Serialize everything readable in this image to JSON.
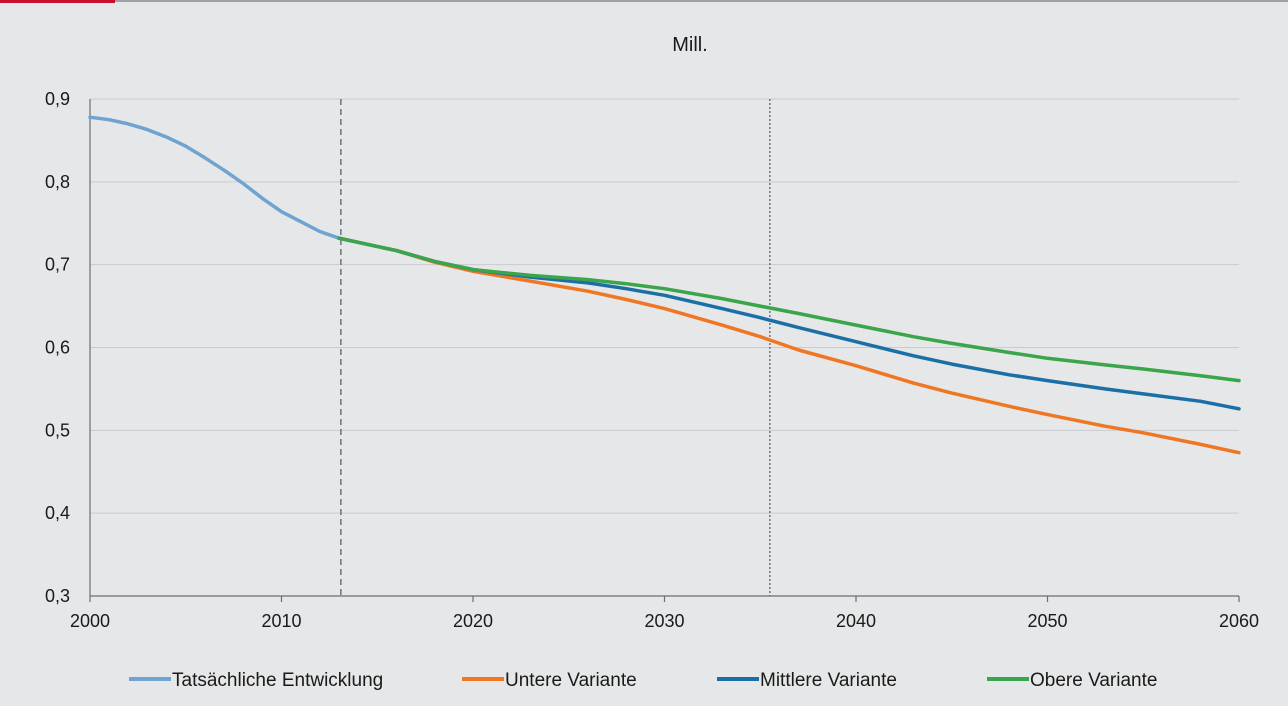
{
  "chart_data": {
    "type": "line",
    "unit_label": "Mill.",
    "xlim": [
      2000,
      2060
    ],
    "ylim": [
      0.3,
      0.9
    ],
    "x_ticks": [
      2000,
      2010,
      2020,
      2030,
      2040,
      2050,
      2060
    ],
    "y_ticks": [
      0.3,
      0.4,
      0.5,
      0.6,
      0.7,
      0.8,
      0.9
    ],
    "y_tick_labels": [
      "0,3",
      "0,4",
      "0,5",
      "0,6",
      "0,7",
      "0,8",
      "0,9"
    ],
    "grid": "horizontal",
    "legend_position": "bottom",
    "vertical_markers": [
      {
        "x": 2013.1,
        "style": "dashed"
      },
      {
        "x": 2035.5,
        "style": "dotted"
      }
    ],
    "series": [
      {
        "name": "Tatsächliche Entwicklung",
        "color": "#6ea3d2",
        "points": [
          [
            2000,
            0.878
          ],
          [
            2001,
            0.875
          ],
          [
            2002,
            0.87
          ],
          [
            2003,
            0.863
          ],
          [
            2004,
            0.854
          ],
          [
            2005,
            0.843
          ],
          [
            2006,
            0.829
          ],
          [
            2007,
            0.814
          ],
          [
            2008,
            0.798
          ],
          [
            2009,
            0.78
          ],
          [
            2010,
            0.764
          ],
          [
            2011,
            0.752
          ],
          [
            2012,
            0.74
          ],
          [
            2013,
            0.732
          ]
        ]
      },
      {
        "name": "Untere Variante",
        "color": "#ef7622",
        "points": [
          [
            2013,
            0.732
          ],
          [
            2016,
            0.717
          ],
          [
            2018,
            0.703
          ],
          [
            2020,
            0.692
          ],
          [
            2023,
            0.68
          ],
          [
            2026,
            0.668
          ],
          [
            2028,
            0.658
          ],
          [
            2030,
            0.647
          ],
          [
            2033,
            0.627
          ],
          [
            2035,
            0.613
          ],
          [
            2037,
            0.597
          ],
          [
            2040,
            0.578
          ],
          [
            2043,
            0.557
          ],
          [
            2045,
            0.545
          ],
          [
            2048,
            0.529
          ],
          [
            2050,
            0.519
          ],
          [
            2053,
            0.505
          ],
          [
            2055,
            0.497
          ],
          [
            2058,
            0.483
          ],
          [
            2060,
            0.473
          ]
        ]
      },
      {
        "name": "Mittlere Variante",
        "color": "#1a6fa6",
        "points": [
          [
            2013,
            0.732
          ],
          [
            2016,
            0.717
          ],
          [
            2018,
            0.704
          ],
          [
            2020,
            0.694
          ],
          [
            2023,
            0.685
          ],
          [
            2026,
            0.678
          ],
          [
            2028,
            0.671
          ],
          [
            2030,
            0.663
          ],
          [
            2033,
            0.647
          ],
          [
            2035,
            0.636
          ],
          [
            2037,
            0.624
          ],
          [
            2040,
            0.607
          ],
          [
            2043,
            0.59
          ],
          [
            2045,
            0.58
          ],
          [
            2048,
            0.567
          ],
          [
            2050,
            0.56
          ],
          [
            2053,
            0.55
          ],
          [
            2055,
            0.544
          ],
          [
            2058,
            0.535
          ],
          [
            2060,
            0.526
          ]
        ]
      },
      {
        "name": "Obere Variante",
        "color": "#3aa54b",
        "points": [
          [
            2013,
            0.732
          ],
          [
            2016,
            0.717
          ],
          [
            2018,
            0.704
          ],
          [
            2020,
            0.694
          ],
          [
            2023,
            0.687
          ],
          [
            2026,
            0.682
          ],
          [
            2028,
            0.677
          ],
          [
            2030,
            0.671
          ],
          [
            2033,
            0.659
          ],
          [
            2035,
            0.65
          ],
          [
            2037,
            0.641
          ],
          [
            2040,
            0.627
          ],
          [
            2043,
            0.613
          ],
          [
            2045,
            0.605
          ],
          [
            2048,
            0.594
          ],
          [
            2050,
            0.587
          ],
          [
            2053,
            0.579
          ],
          [
            2055,
            0.574
          ],
          [
            2058,
            0.566
          ],
          [
            2060,
            0.56
          ]
        ]
      }
    ]
  }
}
